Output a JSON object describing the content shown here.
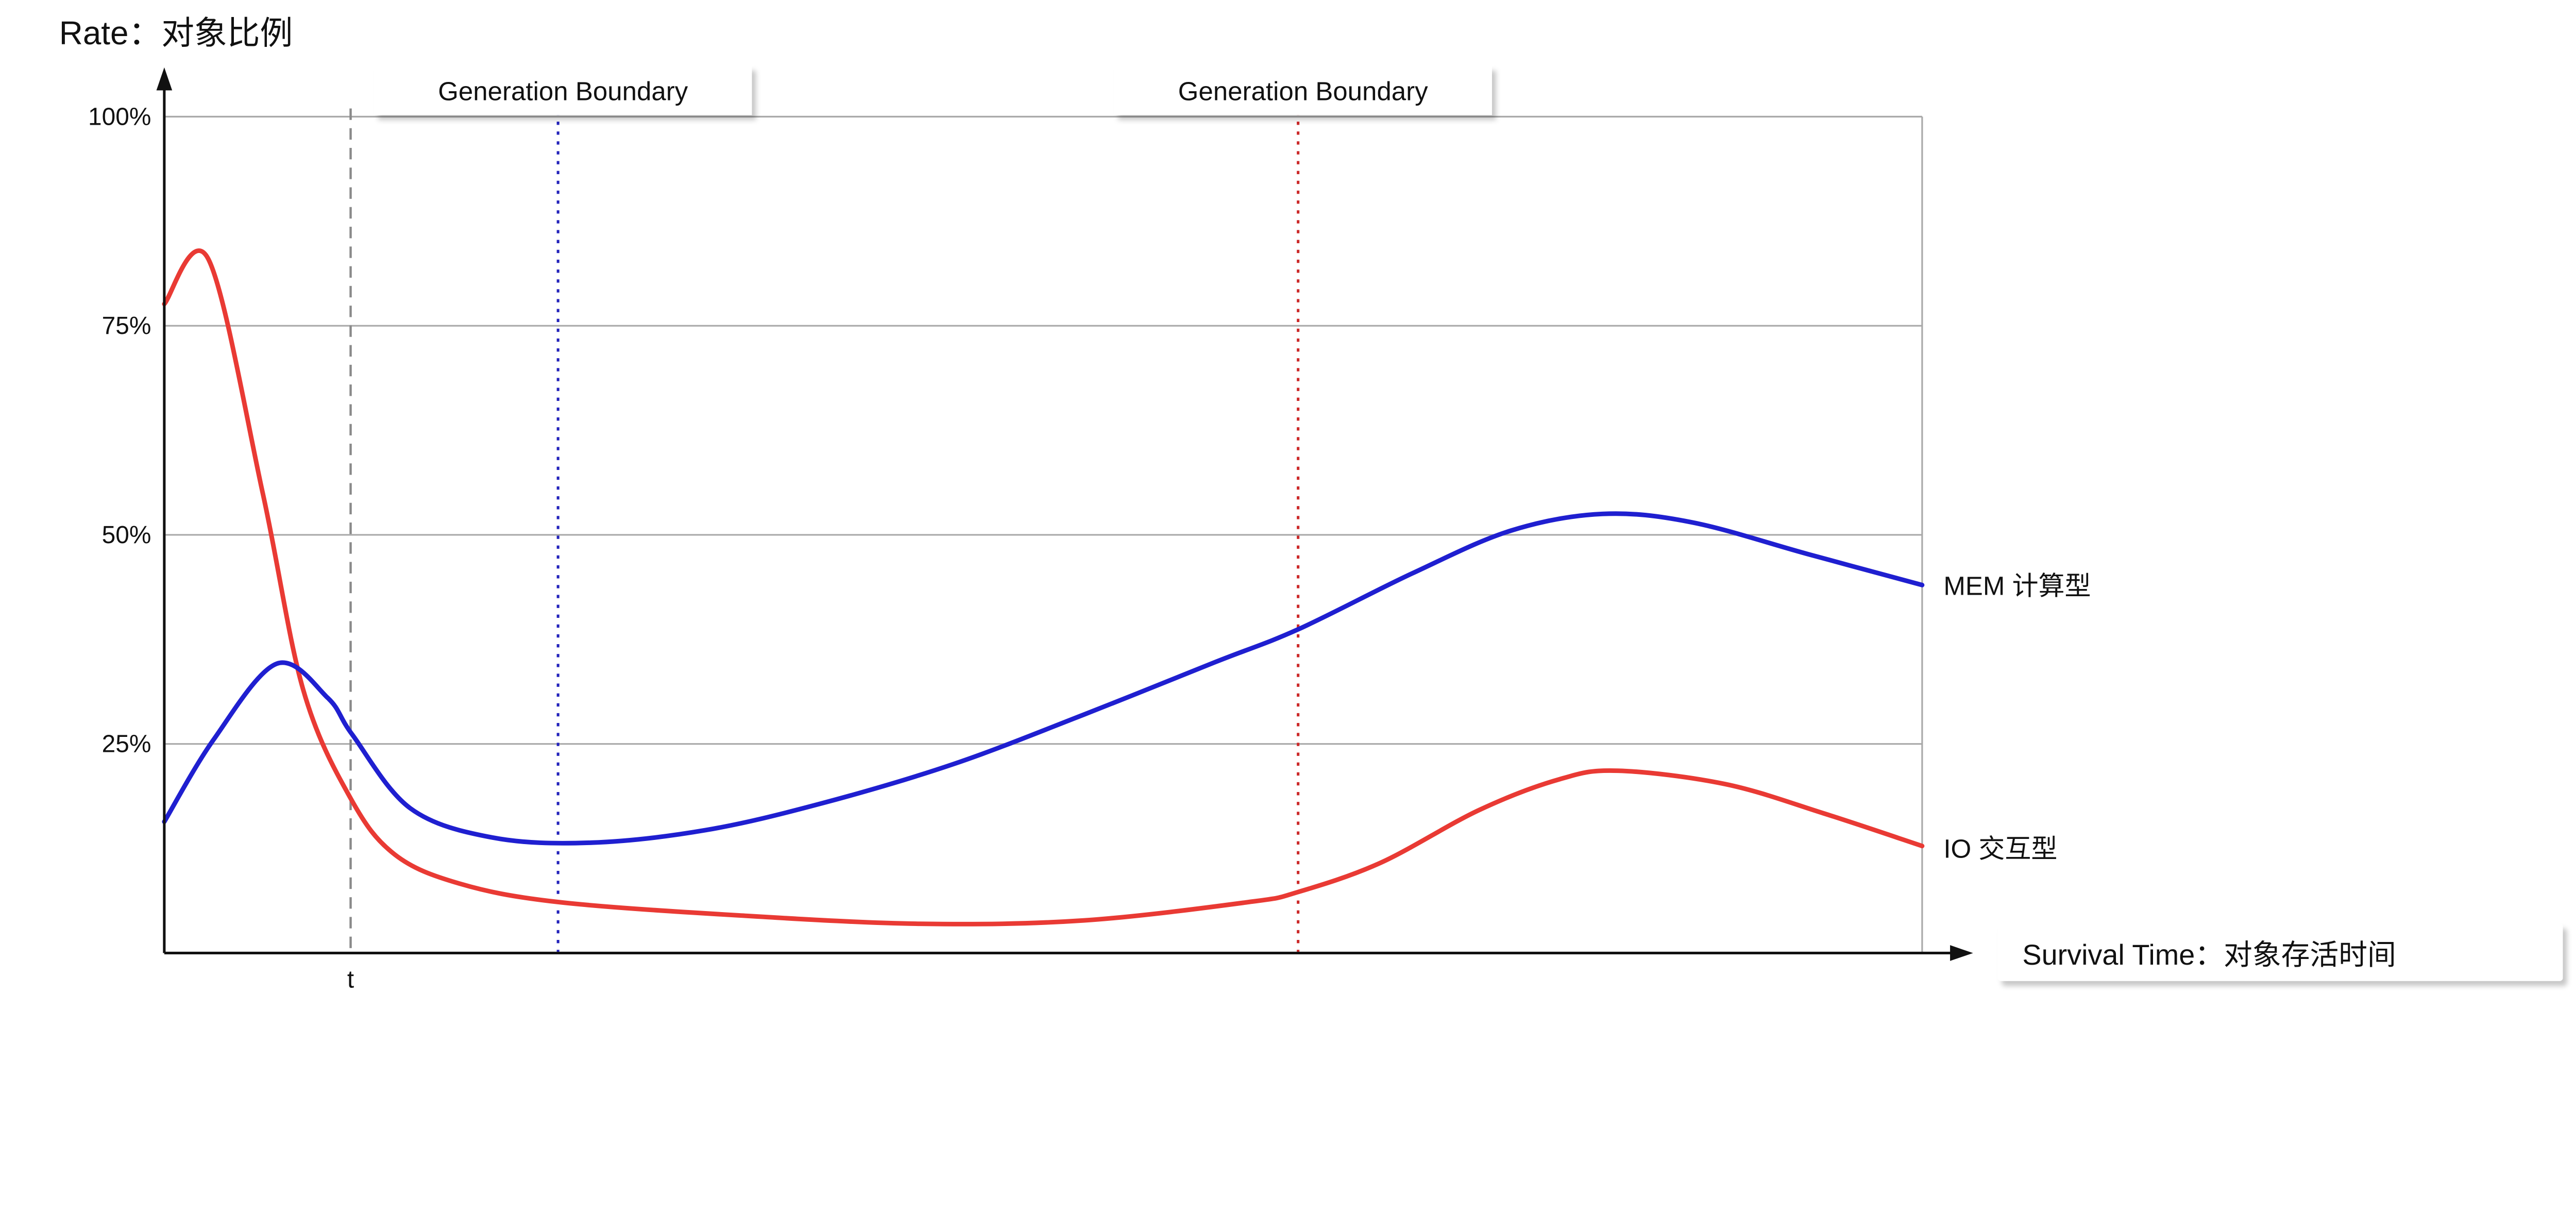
{
  "title": "Rate：对象比例",
  "x_axis": {
    "label": "Survival Time：对象存活时间"
  },
  "t_marker": {
    "label": "t",
    "x": 10.6,
    "color": "#8a8a8a"
  },
  "boundaries": [
    {
      "label": "Generation Boundary",
      "x": 22.4,
      "color": "#2323bb"
    },
    {
      "label": "Generation Boundary",
      "x": 64.5,
      "color": "#cc2a2a"
    }
  ],
  "chart_data": {
    "type": "line",
    "title": "Rate：对象比例",
    "xlabel": "Survival Time：对象存活时间",
    "ylabel": "Rate：对象比例",
    "xlim": [
      0,
      100
    ],
    "ylim": [
      0,
      100
    ],
    "yticks": [
      25,
      50,
      75,
      100
    ],
    "ytick_suffix": "%",
    "grid": "horizontal",
    "legend_position": "right-of-curve-end",
    "series": [
      {
        "name": "IO 交互型",
        "color": "#e93a34",
        "points": [
          [
            0,
            77.6
          ],
          [
            2.5,
            83
          ],
          [
            5.6,
            55
          ],
          [
            7.9,
            31.5
          ],
          [
            10.6,
            18.5
          ],
          [
            13.1,
            11.8
          ],
          [
            16.8,
            8.3
          ],
          [
            22.4,
            6.1
          ],
          [
            32.7,
            4.5
          ],
          [
            43,
            3.5
          ],
          [
            52.3,
            3.9
          ],
          [
            61.7,
            6.1
          ],
          [
            64.5,
            7.3
          ],
          [
            69.2,
            10.8
          ],
          [
            74.8,
            17.1
          ],
          [
            79.4,
            20.8
          ],
          [
            82.7,
            21.8
          ],
          [
            88.8,
            20.2
          ],
          [
            94.4,
            16.7
          ],
          [
            100,
            12.8
          ]
        ]
      },
      {
        "name": "MEM 计算型",
        "color": "#1f1fd0",
        "points": [
          [
            0,
            15.7
          ],
          [
            2.8,
            25.5
          ],
          [
            6.4,
            34.6
          ],
          [
            9.3,
            30.5
          ],
          [
            10.7,
            26.1
          ],
          [
            14,
            17.3
          ],
          [
            18.7,
            13.8
          ],
          [
            24.3,
            13.2
          ],
          [
            30.8,
            14.7
          ],
          [
            37.4,
            17.9
          ],
          [
            44.9,
            22.6
          ],
          [
            52.3,
            28.5
          ],
          [
            59.8,
            34.8
          ],
          [
            64.5,
            38.7
          ],
          [
            71,
            45.4
          ],
          [
            76.6,
            50.5
          ],
          [
            81.8,
            52.5
          ],
          [
            86.9,
            51.5
          ],
          [
            93.5,
            47.7
          ],
          [
            100,
            44
          ]
        ]
      }
    ]
  }
}
